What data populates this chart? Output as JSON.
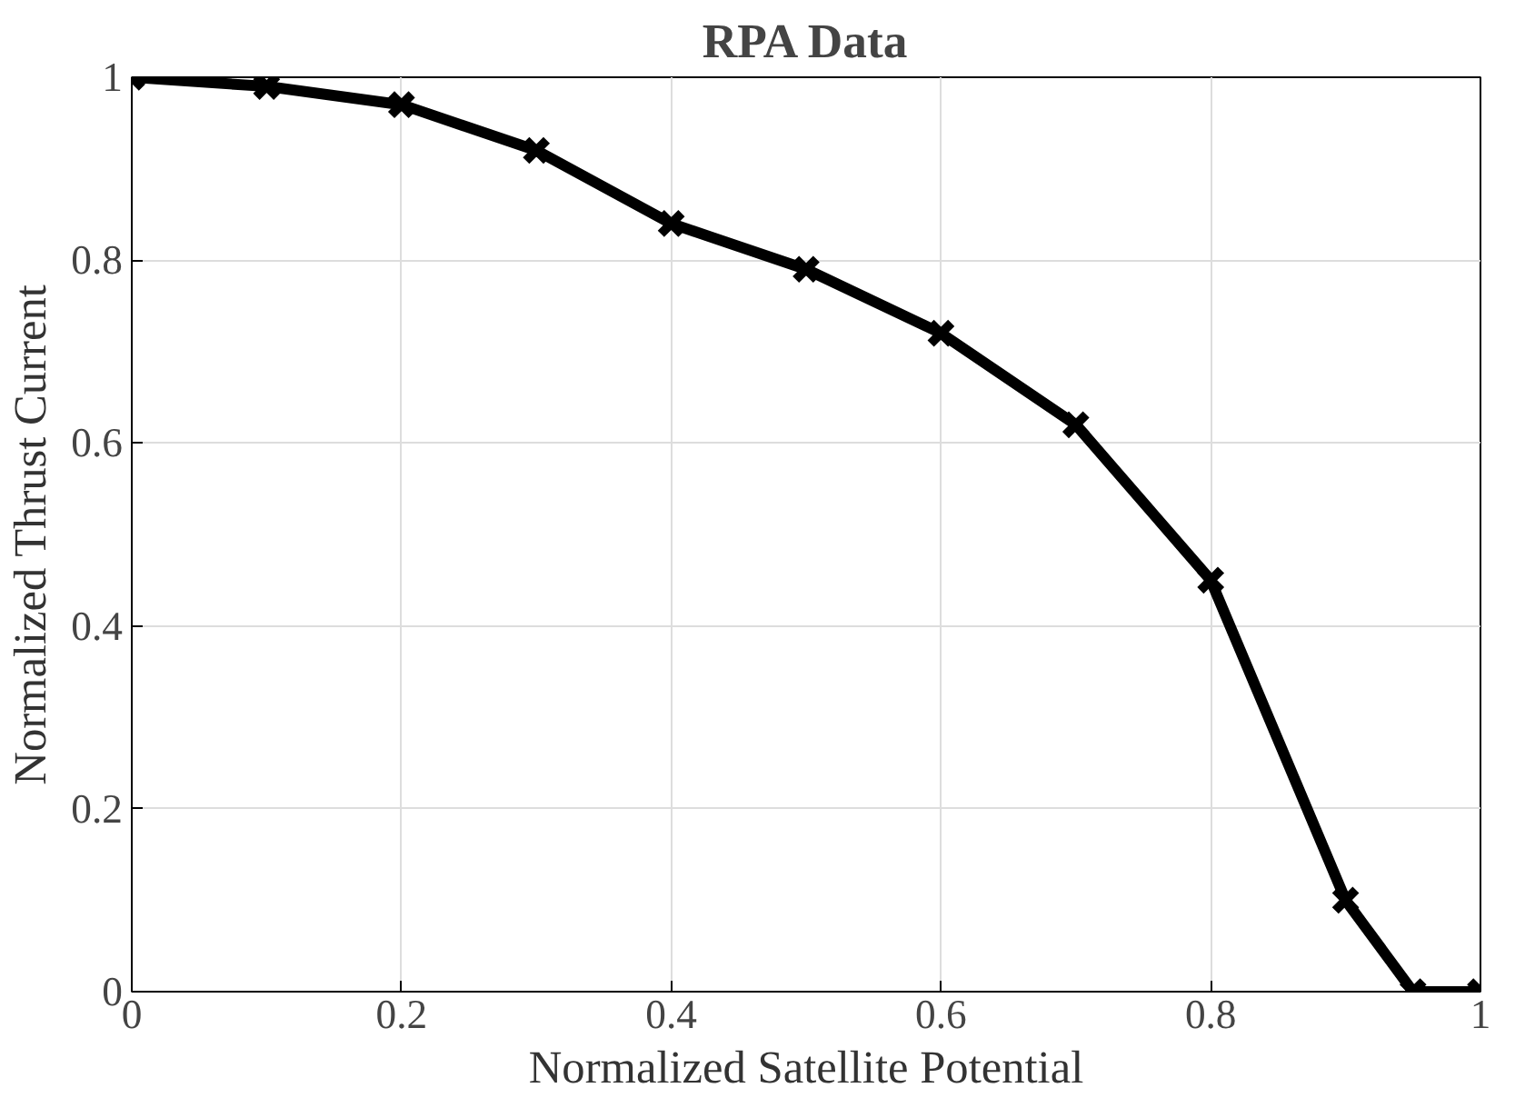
{
  "chart_data": {
    "type": "line",
    "title": "RPA Data",
    "xlabel": "Normalized Satellite Potential",
    "ylabel": "Normalized Thrust Current",
    "x": [
      0,
      0.1,
      0.2,
      0.3,
      0.4,
      0.5,
      0.6,
      0.7,
      0.8,
      0.9,
      0.95,
      1.0
    ],
    "series": [
      {
        "color": "#000000",
        "values": [
          1,
          0.99,
          0.97,
          0.92,
          0.84,
          0.79,
          0.72,
          0.62,
          0.45,
          0.1,
          0,
          0
        ]
      }
    ],
    "xlim": [
      0,
      1
    ],
    "ylim": [
      0,
      1
    ],
    "xticks": [
      0,
      0.2,
      0.4,
      0.6,
      0.8,
      1
    ],
    "yticks": [
      0,
      0.2,
      0.4,
      0.6,
      0.8,
      1
    ],
    "grid": true,
    "marker": "cross",
    "line_style": "solid"
  }
}
